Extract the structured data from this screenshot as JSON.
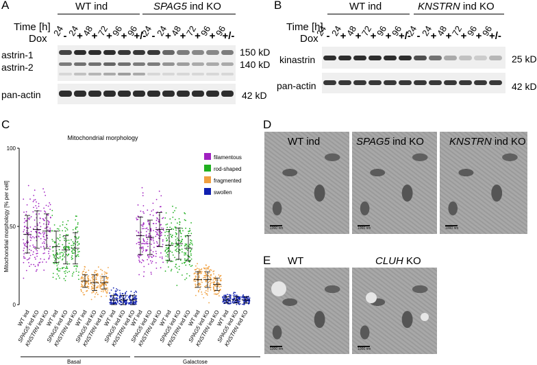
{
  "panelA": {
    "letter": "A",
    "time_label": "Time [h]",
    "dox_label": "Dox",
    "group1": "WT ind",
    "group2_italic": "SPAG5",
    "group2_rest": " ind KO",
    "times": [
      "24",
      "24",
      "48",
      "72",
      "96",
      "96",
      "24",
      "24",
      "48",
      "72",
      "96",
      "96"
    ],
    "dox": [
      "-",
      "+",
      "+",
      "+",
      "+",
      "+/-",
      "-",
      "+",
      "+",
      "+",
      "+",
      "+/-"
    ],
    "band_labels": [
      "astrin-1",
      "astrin-2",
      "pan-actin"
    ],
    "mw": [
      "150 kD",
      "140 kD",
      "42 kD"
    ]
  },
  "panelB": {
    "letter": "B",
    "time_label": "Time [h]",
    "dox_label": "Dox",
    "group1": "WT ind",
    "group2_italic": "KNSTRN",
    "group2_rest": " ind KO",
    "times": [
      "24",
      "24",
      "48",
      "72",
      "96",
      "96",
      "24",
      "24",
      "48",
      "72",
      "96",
      "96"
    ],
    "dox": [
      "-",
      "+",
      "+",
      "+",
      "+",
      "+/-",
      "-",
      "+",
      "+",
      "+",
      "+",
      "+/-"
    ],
    "band_labels": [
      "kinastrin",
      "pan-actin"
    ],
    "mw": [
      "25 kD",
      "42 kD"
    ]
  },
  "panelC": {
    "letter": "C",
    "title": "Mitochondrial morphology",
    "ylabel": "Mitochondrial morphology [% per cell]",
    "yticks": [
      "0",
      "50",
      "100"
    ],
    "legend": [
      "filamentous",
      "rod-shaped",
      "fragmented",
      "swollen"
    ],
    "xgroups": [
      "Basal",
      "Galactose"
    ],
    "xcat_prefix": [
      "",
      "SPAG5",
      "KNSTRN"
    ],
    "xcat_suffix": [
      "WT ind",
      " ind KO",
      " ind KO"
    ]
  },
  "colors": {
    "filamentous": "#a020c0",
    "rod_shaped": "#20b020",
    "fragmented": "#f0a040",
    "swollen": "#1020b0"
  },
  "chart_data": {
    "type": "scatter",
    "title": "Mitochondrial morphology",
    "ylabel": "Mitochondrial morphology [% per cell]",
    "ylim": [
      0,
      100
    ],
    "categories": [
      "WT ind",
      "SPAG5 ind KO",
      "KNSTRN ind KO"
    ],
    "conditions": [
      "Basal",
      "Galactose"
    ],
    "series": [
      {
        "name": "filamentous",
        "condition": "Basal",
        "mean": [
          45,
          48,
          47
        ],
        "sd": [
          12,
          12,
          11
        ]
      },
      {
        "name": "rod-shaped",
        "condition": "Basal",
        "mean": [
          37,
          35,
          36
        ],
        "sd": [
          10,
          9,
          10
        ]
      },
      {
        "name": "fragmented",
        "condition": "Basal",
        "mean": [
          15,
          14,
          14
        ],
        "sd": [
          4,
          5,
          4
        ]
      },
      {
        "name": "swollen",
        "condition": "Basal",
        "mean": [
          3,
          3,
          3
        ],
        "sd": [
          3,
          3,
          3
        ]
      },
      {
        "name": "filamentous",
        "condition": "Galactose",
        "mean": [
          44,
          43,
          48
        ],
        "sd": [
          12,
          11,
          11
        ]
      },
      {
        "name": "rod-shaped",
        "condition": "Galactose",
        "mean": [
          38,
          39,
          36
        ],
        "sd": [
          10,
          10,
          8
        ]
      },
      {
        "name": "fragmented",
        "condition": "Galactose",
        "mean": [
          16,
          16,
          13
        ],
        "sd": [
          5,
          5,
          4
        ]
      },
      {
        "name": "swollen",
        "condition": "Galactose",
        "mean": [
          3,
          3,
          3
        ],
        "sd": [
          2,
          2,
          2
        ]
      }
    ]
  },
  "panelD": {
    "letter": "D",
    "titles": [
      "WT ind",
      "",
      ""
    ],
    "italic": [
      "",
      "SPAG5",
      "KNSTRN"
    ],
    "rest": [
      "",
      " ind KO",
      " ind KO"
    ],
    "scale": "1000 nm"
  },
  "panelE": {
    "letter": "E",
    "titles": [
      "WT",
      ""
    ],
    "italic": [
      "",
      "CLUH"
    ],
    "rest": [
      "",
      " KO"
    ],
    "scale": "1000 nm"
  }
}
